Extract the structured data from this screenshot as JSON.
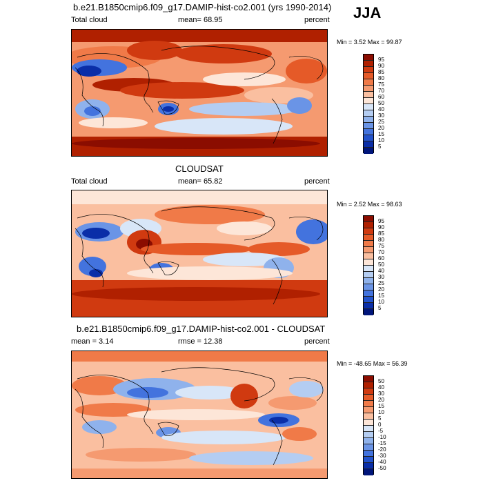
{
  "season": "JJA",
  "panels": [
    {
      "title": "b.e21.B1850cmip6.f09_g17.DAMIP-hist-co2.001 (yrs 1990-2014)",
      "left_label": "Total cloud",
      "center_label": "mean=  68.95",
      "right_label": "percent",
      "minmax": "Min =   3.52 Max =  99.87",
      "colorbar_type": "cloud"
    },
    {
      "title": "CLOUDSAT",
      "left_label": "Total cloud",
      "center_label": "mean=  65.82",
      "right_label": "percent",
      "minmax": "Min =   2.52 Max =  98.63",
      "colorbar_type": "cloud"
    },
    {
      "title": "b.e21.B1850cmip6.f09_g17.DAMIP-hist-co2.001 - CLOUDSAT",
      "left_label": "mean =  3.14",
      "center_label": "rmse =  12.38",
      "right_label": "percent",
      "minmax": "Min = -48.65 Max =  56.39",
      "colorbar_type": "diff"
    }
  ],
  "colorbars": {
    "cloud": {
      "labels": [
        "95",
        "90",
        "85",
        "80",
        "75",
        "70",
        "60",
        "50",
        "40",
        "30",
        "25",
        "20",
        "15",
        "10",
        "5"
      ],
      "colors": [
        "#8b0d00",
        "#b02000",
        "#d03a10",
        "#e55a28",
        "#f07a48",
        "#f59a70",
        "#fabfa0",
        "#fde6d8",
        "#d8e6f8",
        "#b4cdf2",
        "#8fb2ec",
        "#6a94e6",
        "#4373de",
        "#2252cc",
        "#0a2ea8",
        "#00157a"
      ]
    },
    "diff": {
      "labels": [
        "50",
        "40",
        "30",
        "20",
        "15",
        "10",
        "5",
        "0",
        "-5",
        "-10",
        "-15",
        "-20",
        "-30",
        "-40",
        "-50"
      ],
      "colors": [
        "#8b0d00",
        "#b02000",
        "#d03a10",
        "#e55a28",
        "#f07a48",
        "#f59a70",
        "#fabfa0",
        "#fde6d8",
        "#d8e6f8",
        "#b4cdf2",
        "#8fb2ec",
        "#6a94e6",
        "#4373de",
        "#2252cc",
        "#0a2ea8",
        "#00157a"
      ]
    }
  }
}
